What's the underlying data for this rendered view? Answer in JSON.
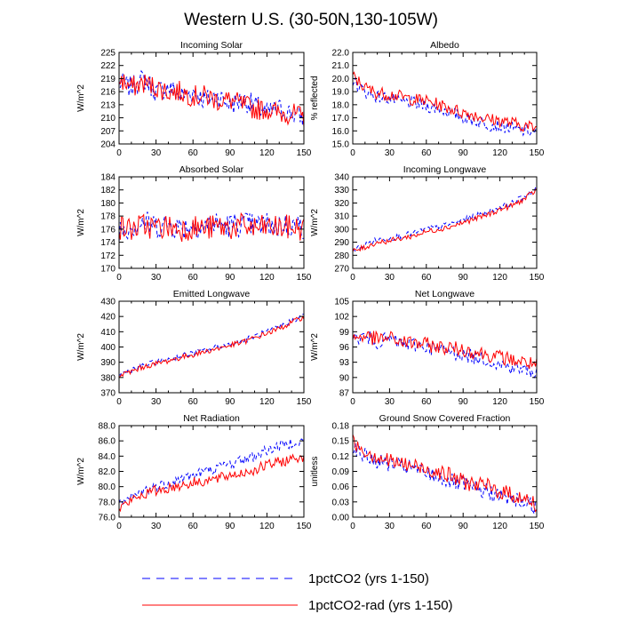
{
  "figure": {
    "title": "Western U.S. (30-50N,130-105W)"
  },
  "legend": [
    {
      "label": "1pctCO2 (yrs 1-150)",
      "color": "#0000ff",
      "dash": "dashed"
    },
    {
      "label": "1pctCO2-rad (yrs 1-150)",
      "color": "#ff0000",
      "dash": "solid"
    }
  ],
  "chart_data": [
    {
      "type": "line",
      "title": "Incoming Solar",
      "ylabel": "W/m^2",
      "xlim": [
        0,
        150
      ],
      "ylim": [
        204,
        225
      ],
      "xticks": [
        "0",
        "30",
        "60",
        "90",
        "120",
        "150"
      ],
      "yticks": [
        "204",
        "207",
        "210",
        "213",
        "216",
        "219",
        "222",
        "225"
      ],
      "x": [
        0,
        10,
        20,
        30,
        40,
        50,
        60,
        70,
        80,
        90,
        100,
        110,
        120,
        130,
        140,
        150
      ],
      "series": [
        {
          "name": "1pctCO2 (yrs 1-150)",
          "values": [
            218,
            217,
            219,
            216,
            217,
            215,
            216,
            214,
            215,
            213,
            214,
            213,
            211,
            212,
            211,
            210
          ]
        },
        {
          "name": "1pctCO2-rad (yrs 1-150)",
          "values": [
            219,
            217,
            218,
            217,
            216,
            216,
            215,
            215,
            214,
            214,
            213,
            212,
            212,
            211,
            211,
            210
          ]
        }
      ]
    },
    {
      "type": "line",
      "title": "Albedo",
      "ylabel": "% reflected",
      "xlim": [
        0,
        150
      ],
      "ylim": [
        15.0,
        22.0
      ],
      "xticks": [
        "0",
        "30",
        "60",
        "90",
        "120",
        "150"
      ],
      "yticks": [
        "15.0",
        "16.0",
        "17.0",
        "18.0",
        "19.0",
        "20.0",
        "21.0",
        "22.0"
      ],
      "x": [
        0,
        10,
        20,
        30,
        40,
        50,
        60,
        70,
        80,
        90,
        100,
        110,
        120,
        130,
        140,
        150
      ],
      "series": [
        {
          "name": "1pctCO2 (yrs 1-150)",
          "values": [
            19.8,
            19.0,
            18.6,
            18.5,
            18.2,
            18.1,
            17.9,
            17.7,
            17.4,
            17.0,
            16.8,
            16.5,
            16.4,
            16.2,
            16.0,
            15.9
          ]
        },
        {
          "name": "1pctCO2-rad (yrs 1-150)",
          "values": [
            20.2,
            19.3,
            18.9,
            18.8,
            18.6,
            18.4,
            18.3,
            18.0,
            17.7,
            17.4,
            17.2,
            16.9,
            16.8,
            16.6,
            16.4,
            16.2
          ]
        }
      ]
    },
    {
      "type": "line",
      "title": "Absorbed Solar",
      "ylabel": "W/m^2",
      "xlim": [
        0,
        150
      ],
      "ylim": [
        170,
        184
      ],
      "xticks": [
        "0",
        "30",
        "60",
        "90",
        "120",
        "150"
      ],
      "yticks": [
        "170",
        "172",
        "174",
        "176",
        "178",
        "180",
        "182",
        "184"
      ],
      "x": [
        0,
        10,
        20,
        30,
        40,
        50,
        60,
        70,
        80,
        90,
        100,
        110,
        120,
        130,
        140,
        150
      ],
      "series": [
        {
          "name": "1pctCO2 (yrs 1-150)",
          "values": [
            176.0,
            176.5,
            177.0,
            176.5,
            176.8,
            176.2,
            176.6,
            176.4,
            176.8,
            176.5,
            176.9,
            176.4,
            176.7,
            176.5,
            176.6,
            176.3
          ]
        },
        {
          "name": "1pctCO2-rad (yrs 1-150)",
          "values": [
            176.2,
            176.0,
            176.6,
            176.2,
            176.4,
            176.0,
            176.3,
            176.1,
            176.4,
            176.2,
            176.5,
            176.1,
            176.3,
            176.2,
            176.3,
            176.0
          ]
        }
      ]
    },
    {
      "type": "line",
      "title": "Incoming Longwave",
      "ylabel": "W/m^2",
      "xlim": [
        0,
        150
      ],
      "ylim": [
        270,
        340
      ],
      "xticks": [
        "0",
        "30",
        "60",
        "90",
        "120",
        "150"
      ],
      "yticks": [
        "270",
        "280",
        "290",
        "300",
        "310",
        "320",
        "330",
        "340"
      ],
      "x": [
        0,
        10,
        20,
        30,
        40,
        50,
        60,
        70,
        80,
        90,
        100,
        110,
        120,
        130,
        140,
        150
      ],
      "series": [
        {
          "name": "1pctCO2 (yrs 1-150)",
          "values": [
            284,
            288,
            292,
            293,
            295,
            297,
            300,
            302,
            304,
            307,
            310,
            313,
            317,
            320,
            325,
            331
          ]
        },
        {
          "name": "1pctCO2-rad (yrs 1-150)",
          "values": [
            283,
            286,
            290,
            291,
            293,
            295,
            298,
            300,
            302,
            305,
            308,
            311,
            315,
            318,
            323,
            330
          ]
        }
      ]
    },
    {
      "type": "line",
      "title": "Emitted Longwave",
      "ylabel": "W/m^2",
      "xlim": [
        0,
        150
      ],
      "ylim": [
        370,
        430
      ],
      "xticks": [
        "0",
        "30",
        "60",
        "90",
        "120",
        "150"
      ],
      "yticks": [
        "370",
        "380",
        "390",
        "400",
        "410",
        "420",
        "430"
      ],
      "x": [
        0,
        10,
        20,
        30,
        40,
        50,
        60,
        70,
        80,
        90,
        100,
        110,
        120,
        130,
        140,
        150
      ],
      "series": [
        {
          "name": "1pctCO2 (yrs 1-150)",
          "values": [
            382,
            385,
            388,
            390,
            392,
            394,
            396,
            398,
            400,
            402,
            404,
            407,
            410,
            413,
            417,
            421
          ]
        },
        {
          "name": "1pctCO2-rad (yrs 1-150)",
          "values": [
            381,
            384,
            387,
            389,
            391,
            393,
            395,
            397,
            399,
            401,
            403,
            406,
            409,
            412,
            416,
            420
          ]
        }
      ]
    },
    {
      "type": "line",
      "title": "Net Longwave",
      "ylabel": "W/m^2",
      "xlim": [
        0,
        150
      ],
      "ylim": [
        87,
        105
      ],
      "xticks": [
        "0",
        "30",
        "60",
        "90",
        "120",
        "150"
      ],
      "yticks": [
        "87",
        "90",
        "93",
        "96",
        "99",
        "102",
        "105"
      ],
      "x": [
        0,
        10,
        20,
        30,
        40,
        50,
        60,
        70,
        80,
        90,
        100,
        110,
        120,
        130,
        140,
        150
      ],
      "series": [
        {
          "name": "1pctCO2 (yrs 1-150)",
          "values": [
            97.5,
            98.0,
            97.0,
            97.5,
            96.5,
            96.5,
            96.0,
            95.5,
            95.0,
            94.5,
            94.0,
            93.5,
            92.5,
            92.0,
            91.5,
            91.0
          ]
        },
        {
          "name": "1pctCO2-rad (yrs 1-150)",
          "values": [
            97.8,
            98.2,
            97.5,
            97.8,
            97.0,
            96.8,
            96.5,
            96.0,
            95.8,
            95.5,
            95.0,
            94.5,
            94.0,
            93.5,
            93.0,
            92.5
          ]
        }
      ]
    },
    {
      "type": "line",
      "title": "Net Radiation",
      "ylabel": "W/m^2",
      "xlim": [
        0,
        150
      ],
      "ylim": [
        76.0,
        88.0
      ],
      "xticks": [
        "0",
        "30",
        "60",
        "90",
        "120",
        "150"
      ],
      "yticks": [
        "76.0",
        "78.0",
        "80.0",
        "82.0",
        "84.0",
        "86.0",
        "88.0"
      ],
      "x": [
        0,
        10,
        20,
        30,
        40,
        50,
        60,
        70,
        80,
        90,
        100,
        110,
        120,
        130,
        140,
        150
      ],
      "series": [
        {
          "name": "1pctCO2 (yrs 1-150)",
          "values": [
            77.5,
            78.5,
            79.5,
            80.0,
            80.5,
            81.0,
            81.5,
            82.0,
            82.5,
            83.0,
            83.5,
            84.0,
            84.8,
            85.3,
            85.8,
            86.0
          ]
        },
        {
          "name": "1pctCO2-rad (yrs 1-150)",
          "values": [
            77.2,
            78.2,
            79.0,
            79.5,
            79.8,
            80.2,
            80.5,
            80.8,
            81.0,
            81.5,
            81.8,
            82.2,
            82.8,
            83.2,
            83.6,
            84.0
          ]
        }
      ]
    },
    {
      "type": "line",
      "title": "Ground Snow Covered Fraction",
      "ylabel": "unitless",
      "xlim": [
        0,
        150
      ],
      "ylim": [
        0.0,
        0.18
      ],
      "xticks": [
        "0",
        "30",
        "60",
        "90",
        "120",
        "150"
      ],
      "yticks": [
        "0.00",
        "0.03",
        "0.06",
        "0.09",
        "0.12",
        "0.15",
        "0.18"
      ],
      "x": [
        0,
        10,
        20,
        30,
        40,
        50,
        60,
        70,
        80,
        90,
        100,
        110,
        120,
        130,
        140,
        150
      ],
      "series": [
        {
          "name": "1pctCO2 (yrs 1-150)",
          "values": [
            0.14,
            0.12,
            0.11,
            0.105,
            0.1,
            0.095,
            0.085,
            0.08,
            0.07,
            0.065,
            0.055,
            0.05,
            0.04,
            0.035,
            0.03,
            0.02
          ]
        },
        {
          "name": "1pctCO2-rad (yrs 1-150)",
          "values": [
            0.15,
            0.13,
            0.12,
            0.11,
            0.105,
            0.1,
            0.095,
            0.09,
            0.08,
            0.07,
            0.065,
            0.06,
            0.05,
            0.045,
            0.035,
            0.025
          ]
        }
      ]
    }
  ]
}
